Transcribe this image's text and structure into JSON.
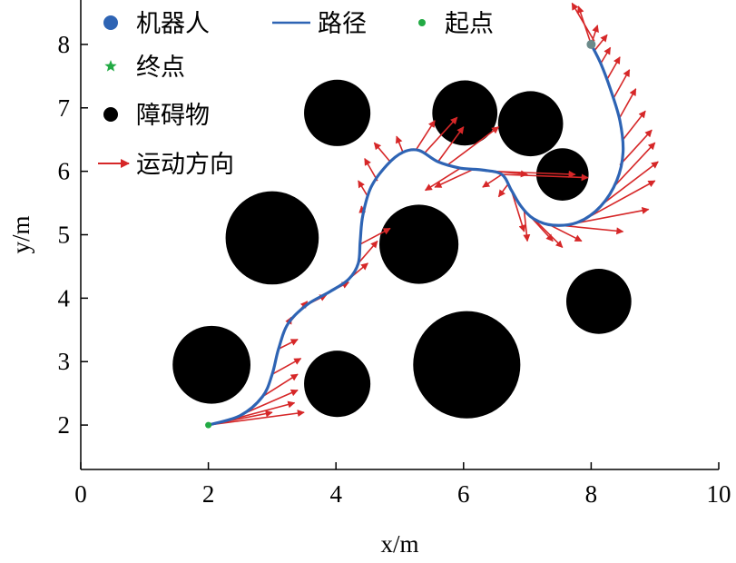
{
  "chart_data": {
    "type": "scatter",
    "xlabel": "x/m",
    "ylabel": "y/m",
    "xlim": [
      0,
      10
    ],
    "ylim": [
      1.3,
      8.7
    ],
    "xticks": [
      0,
      2,
      4,
      6,
      8,
      10
    ],
    "yticks": [
      2,
      3,
      4,
      5,
      6,
      7,
      8
    ],
    "legend": {
      "placement": "top-left",
      "entries": [
        {
          "label": "机器人",
          "marker": "dot",
          "color": "#2e64b4"
        },
        {
          "label": "路径",
          "marker": "line",
          "color": "#2e64b4"
        },
        {
          "label": "起点",
          "marker": "small-dot",
          "color": "#22aa44"
        },
        {
          "label": "终点",
          "marker": "star",
          "color": "#22aa44"
        },
        {
          "label": "障碍物",
          "marker": "dot",
          "color": "#000000"
        },
        {
          "label": "运动方向",
          "marker": "arrow",
          "color": "#d62728"
        }
      ]
    },
    "colors": {
      "robot": "#2e64b4",
      "path": "#2e64b4",
      "start": "#22aa44",
      "goal": "#22aa44",
      "obstacle": "#000000",
      "arrow": "#d62728"
    },
    "start": [
      2,
      2
    ],
    "goal": [
      8,
      8
    ],
    "obstacles": [
      {
        "x": 2.05,
        "y": 2.95,
        "r": 0.61
      },
      {
        "x": 3.0,
        "y": 4.95,
        "r": 0.73
      },
      {
        "x": 4.02,
        "y": 2.65,
        "r": 0.52
      },
      {
        "x": 4.02,
        "y": 6.92,
        "r": 0.52
      },
      {
        "x": 5.3,
        "y": 4.85,
        "r": 0.62
      },
      {
        "x": 6.05,
        "y": 2.95,
        "r": 0.84
      },
      {
        "x": 6.02,
        "y": 6.92,
        "r": 0.51
      },
      {
        "x": 7.05,
        "y": 6.75,
        "r": 0.51
      },
      {
        "x": 7.55,
        "y": 5.95,
        "r": 0.41
      },
      {
        "x": 8.12,
        "y": 3.95,
        "r": 0.51
      }
    ],
    "path": [
      [
        2.0,
        2.0
      ],
      [
        2.5,
        2.15
      ],
      [
        2.85,
        2.45
      ],
      [
        3.0,
        2.8
      ],
      [
        3.1,
        3.2
      ],
      [
        3.25,
        3.6
      ],
      [
        3.55,
        3.9
      ],
      [
        3.9,
        4.1
      ],
      [
        4.2,
        4.3
      ],
      [
        4.35,
        4.55
      ],
      [
        4.38,
        4.9
      ],
      [
        4.42,
        5.3
      ],
      [
        4.55,
        5.75
      ],
      [
        4.8,
        6.1
      ],
      [
        5.05,
        6.3
      ],
      [
        5.3,
        6.33
      ],
      [
        5.6,
        6.15
      ],
      [
        5.95,
        6.05
      ],
      [
        6.3,
        6.02
      ],
      [
        6.6,
        5.95
      ],
      [
        6.75,
        5.7
      ],
      [
        6.9,
        5.45
      ],
      [
        7.1,
        5.25
      ],
      [
        7.4,
        5.15
      ],
      [
        7.8,
        5.2
      ],
      [
        8.15,
        5.45
      ],
      [
        8.4,
        5.85
      ],
      [
        8.5,
        6.3
      ],
      [
        8.45,
        6.8
      ],
      [
        8.3,
        7.3
      ],
      [
        8.15,
        7.7
      ],
      [
        8.0,
        8.0
      ]
    ],
    "arrows": [
      [
        2.0,
        2.0,
        3.0,
        2.2
      ],
      [
        2.0,
        2.0,
        3.5,
        2.2
      ],
      [
        2.3,
        2.07,
        3.35,
        2.35
      ],
      [
        2.6,
        2.2,
        3.4,
        2.55
      ],
      [
        2.85,
        2.45,
        3.4,
        2.8
      ],
      [
        3.0,
        2.8,
        3.45,
        3.05
      ],
      [
        3.1,
        3.2,
        3.4,
        3.35
      ],
      [
        3.2,
        3.5,
        3.3,
        3.7
      ],
      [
        3.3,
        3.65,
        3.55,
        3.95
      ],
      [
        3.55,
        3.9,
        3.85,
        4.05
      ],
      [
        3.9,
        4.1,
        4.2,
        4.25
      ],
      [
        4.2,
        4.3,
        4.5,
        4.55
      ],
      [
        4.35,
        4.55,
        4.65,
        4.9
      ],
      [
        4.38,
        4.85,
        4.85,
        5.1
      ],
      [
        4.42,
        5.3,
        4.4,
        5.45
      ],
      [
        4.5,
        5.6,
        4.35,
        5.85
      ],
      [
        4.65,
        5.85,
        4.45,
        6.2
      ],
      [
        4.85,
        6.15,
        4.6,
        6.45
      ],
      [
        5.05,
        6.3,
        4.95,
        6.55
      ],
      [
        5.25,
        6.33,
        5.55,
        6.8
      ],
      [
        5.4,
        6.3,
        5.9,
        6.85
      ],
      [
        5.6,
        6.15,
        6.0,
        6.7
      ],
      [
        5.75,
        6.1,
        6.55,
        6.7
      ],
      [
        5.95,
        6.05,
        5.4,
        5.7
      ],
      [
        6.15,
        6.03,
        5.55,
        5.75
      ],
      [
        6.3,
        6.02,
        7.0,
        5.95
      ],
      [
        6.45,
        6.0,
        7.75,
        5.95
      ],
      [
        6.6,
        5.95,
        7.95,
        5.9
      ],
      [
        6.6,
        5.95,
        6.3,
        5.75
      ],
      [
        6.7,
        5.8,
        6.55,
        5.6
      ],
      [
        6.75,
        5.7,
        6.95,
        5.05
      ],
      [
        6.9,
        5.45,
        7.4,
        4.9
      ],
      [
        6.95,
        5.38,
        7.0,
        4.9
      ],
      [
        7.1,
        5.25,
        7.55,
        4.8
      ],
      [
        7.3,
        5.18,
        7.85,
        4.9
      ],
      [
        7.5,
        5.15,
        8.5,
        5.05
      ],
      [
        7.75,
        5.18,
        8.9,
        5.4
      ],
      [
        8.0,
        5.3,
        9.0,
        5.85
      ],
      [
        8.2,
        5.5,
        9.05,
        6.15
      ],
      [
        8.35,
        5.75,
        9.0,
        6.45
      ],
      [
        8.45,
        6.1,
        8.95,
        6.65
      ],
      [
        8.5,
        6.5,
        8.85,
        6.95
      ],
      [
        8.45,
        6.85,
        8.7,
        7.3
      ],
      [
        8.35,
        7.15,
        8.6,
        7.6
      ],
      [
        8.25,
        7.45,
        8.45,
        7.8
      ],
      [
        8.15,
        7.7,
        8.3,
        7.95
      ],
      [
        8.05,
        7.9,
        8.25,
        8.15
      ],
      [
        8.0,
        8.0,
        8.1,
        8.3
      ],
      [
        8.0,
        8.0,
        7.8,
        8.6
      ],
      [
        8.05,
        8.05,
        7.7,
        8.65
      ]
    ]
  }
}
